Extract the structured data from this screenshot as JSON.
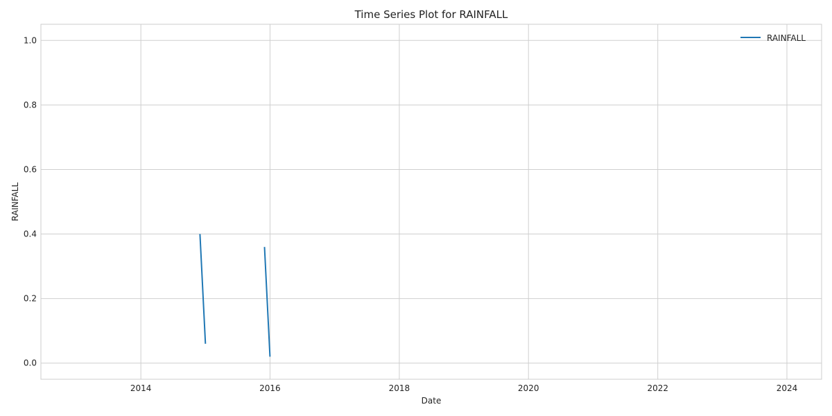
{
  "chart_data": {
    "type": "line",
    "title": "Time Series Plot for RAINFALL",
    "xlabel": "Date",
    "ylabel": "RAINFALL",
    "xlim": [
      "2012-06-15",
      "2024-07-15"
    ],
    "ylim": [
      -0.05,
      1.05
    ],
    "x_ticks": [
      {
        "value": "2014-01-01",
        "label": "2014"
      },
      {
        "value": "2016-01-01",
        "label": "2016"
      },
      {
        "value": "2018-01-01",
        "label": "2018"
      },
      {
        "value": "2020-01-01",
        "label": "2020"
      },
      {
        "value": "2022-01-01",
        "label": "2022"
      },
      {
        "value": "2024-01-01",
        "label": "2024"
      }
    ],
    "y_ticks": [
      {
        "value": 0.0,
        "label": "0.0"
      },
      {
        "value": 0.2,
        "label": "0.2"
      },
      {
        "value": 0.4,
        "label": "0.4"
      },
      {
        "value": 0.6,
        "label": "0.6"
      },
      {
        "value": 0.8,
        "label": "0.8"
      },
      {
        "value": 1.0,
        "label": "1.0"
      }
    ],
    "grid": true,
    "legend": "top-right",
    "series": [
      {
        "name": "RAINFALL",
        "color": "#1f77b4",
        "segments": [
          [
            {
              "x": "2014-12-01",
              "y": 0.4
            },
            {
              "x": "2015-01-01",
              "y": 0.06
            }
          ],
          [
            {
              "x": "2015-12-01",
              "y": 0.36
            },
            {
              "x": "2016-01-01",
              "y": 0.02
            }
          ]
        ]
      }
    ]
  }
}
